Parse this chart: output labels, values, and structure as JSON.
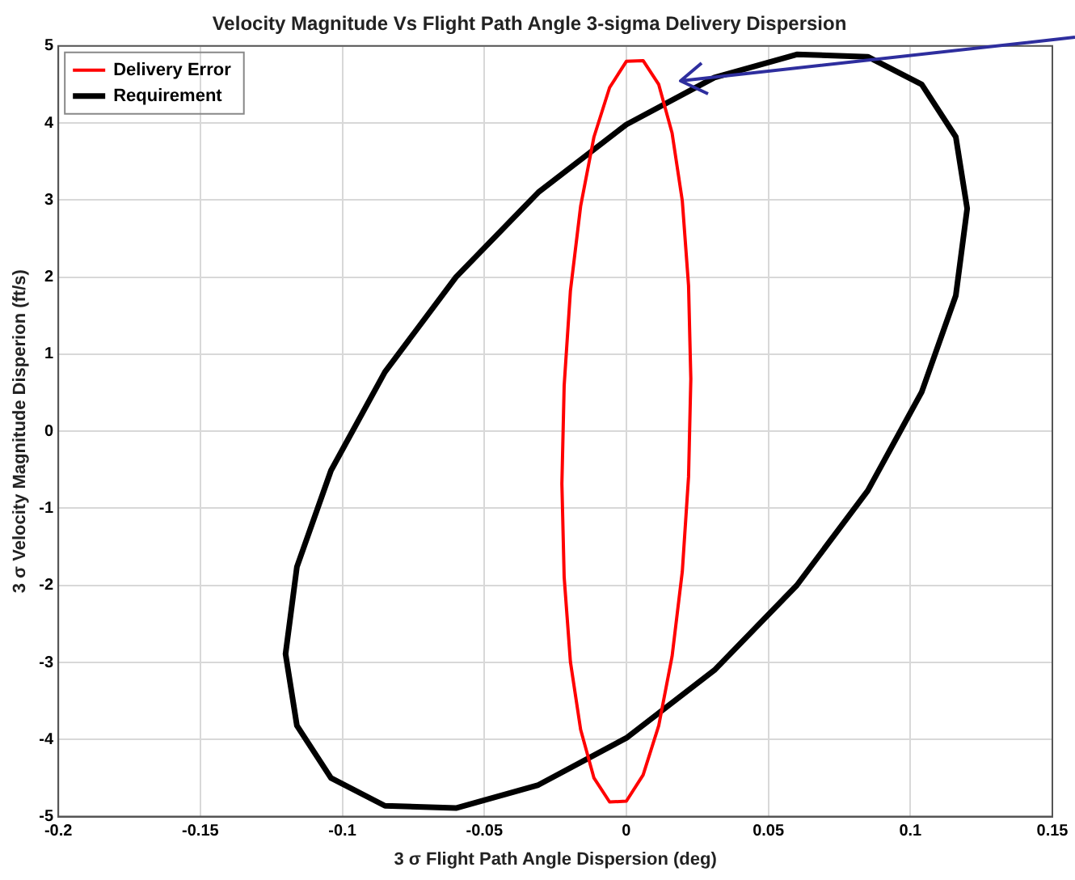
{
  "chart_data": {
    "type": "line",
    "title": "Velocity Magnitude Vs Flight Path Angle 3-sigma Delivery Dispersion",
    "xlabel": "3 σ Flight Path Angle Dispersion (deg)",
    "ylabel": "3 σ Velocity Magnitude Disperion (ft/s)",
    "xlim": [
      -0.2,
      0.15
    ],
    "xticks": [
      -0.2,
      -0.15,
      -0.1,
      -0.05,
      0,
      0.05,
      0.1,
      0.15
    ],
    "ylim": [
      -5,
      5
    ],
    "yticks": [
      -5,
      -4,
      -3,
      -2,
      -1,
      0,
      1,
      2,
      3,
      4,
      5
    ],
    "grid": true,
    "legend": "top left",
    "marker": "none",
    "line_style": "solid",
    "series": [
      {
        "name": "Delivery Error",
        "color": "#ff0000",
        "x": [
          0.0227,
          0.0219,
          0.0197,
          0.0161,
          0.0114,
          0.0059,
          0,
          -0.0059,
          -0.0114,
          -0.0161,
          -0.0197,
          -0.0219,
          -0.0227,
          -0.0219,
          -0.0197,
          -0.0161,
          -0.0114,
          -0.0059,
          0,
          0.0059,
          0.0114,
          0.0161,
          0.0197,
          0.0219,
          0.0227,
          0.0219
        ],
        "values": [
          0.68,
          1.89,
          2.99,
          3.87,
          4.5,
          4.81,
          4.8,
          4.46,
          3.82,
          2.92,
          1.82,
          0.59,
          -0.68,
          -1.89,
          -2.99,
          -3.87,
          -4.5,
          -4.81,
          -4.8,
          -4.46,
          -3.82,
          -2.92,
          -1.82,
          -0.59,
          0.68,
          1.89
        ]
      },
      {
        "name": "Requirement",
        "color": "#000000",
        "x": [
          0.12,
          0.116,
          0.104,
          0.085,
          0.06,
          0.031,
          0,
          -0.031,
          -0.06,
          -0.085,
          -0.104,
          -0.116,
          -0.12,
          -0.116,
          -0.104,
          -0.085,
          -0.06,
          -0.031,
          0,
          0.031,
          0.06,
          0.085,
          0.104,
          0.116,
          0.12,
          0.116
        ],
        "values": [
          2.89,
          3.82,
          4.5,
          4.86,
          4.89,
          4.59,
          3.98,
          3.1,
          2.0,
          0.77,
          -0.51,
          -1.76,
          -2.89,
          -3.82,
          -4.5,
          -4.86,
          -4.89,
          -4.59,
          -3.98,
          -3.1,
          -2.0,
          -0.77,
          0.51,
          1.76,
          2.89,
          3.82
        ]
      }
    ]
  }
}
